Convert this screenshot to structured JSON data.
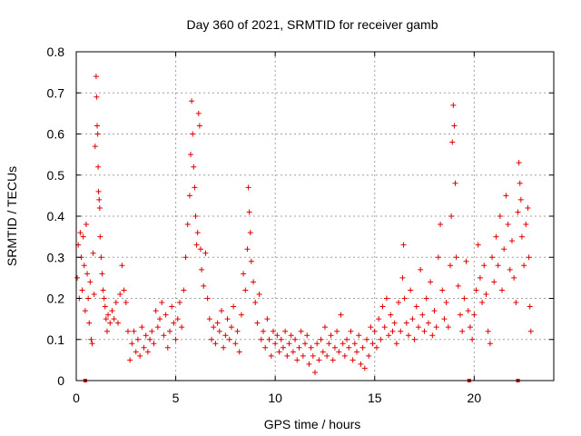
{
  "chart_data": {
    "type": "scatter",
    "title": "Day 360 of 2021, SRMTID for receiver gamb",
    "xlabel": "GPS time / hours",
    "ylabel": "SRMTID / TECUs",
    "xlim": [
      0,
      24
    ],
    "ylim": [
      0,
      0.8
    ],
    "xticks": [
      0,
      5,
      10,
      15,
      20
    ],
    "xtick_labels": [
      "0",
      "5",
      "10",
      "15",
      "20"
    ],
    "yticks": [
      0,
      0.1,
      0.2,
      0.3,
      0.4,
      0.5,
      0.6,
      0.7,
      0.8
    ],
    "ytick_labels": [
      "0",
      "0.1",
      "0.2",
      "0.3",
      "0.4",
      "0.5",
      "0.6",
      "0.7",
      "0.8"
    ],
    "grid": true,
    "marker": "+",
    "color": "#e00000",
    "series": [
      {
        "name": "SRMTID",
        "points": [
          [
            0.05,
            0.25
          ],
          [
            0.1,
            0.33
          ],
          [
            0.15,
            0.2
          ],
          [
            0.2,
            0.36
          ],
          [
            0.25,
            0.3
          ],
          [
            0.3,
            0.22
          ],
          [
            0.35,
            0.35
          ],
          [
            0.4,
            0.28
          ],
          [
            0.45,
            0.17
          ],
          [
            0.5,
            0.38
          ],
          [
            0.55,
            0.26
          ],
          [
            0.6,
            0.2
          ],
          [
            0.65,
            0.14
          ],
          [
            0.7,
            0.24
          ],
          [
            0.75,
            0.1
          ],
          [
            0.8,
            0.09
          ],
          [
            0.85,
            0.31
          ],
          [
            0.9,
            0.21
          ],
          [
            0.95,
            0.57
          ],
          [
            1.0,
            0.74
          ],
          [
            1.02,
            0.69
          ],
          [
            1.05,
            0.62
          ],
          [
            1.08,
            0.6
          ],
          [
            1.1,
            0.52
          ],
          [
            1.12,
            0.46
          ],
          [
            1.15,
            0.44
          ],
          [
            1.18,
            0.42
          ],
          [
            1.2,
            0.35
          ],
          [
            1.25,
            0.3
          ],
          [
            1.3,
            0.26
          ],
          [
            1.35,
            0.22
          ],
          [
            1.4,
            0.2
          ],
          [
            1.45,
            0.18
          ],
          [
            1.5,
            0.15
          ],
          [
            1.55,
            0.12
          ],
          [
            1.6,
            0.16
          ],
          [
            1.7,
            0.14
          ],
          [
            1.8,
            0.17
          ],
          [
            1.9,
            0.15
          ],
          [
            2.0,
            0.19
          ],
          [
            2.1,
            0.14
          ],
          [
            2.2,
            0.21
          ],
          [
            2.3,
            0.28
          ],
          [
            2.4,
            0.22
          ],
          [
            2.5,
            0.19
          ],
          [
            2.6,
            0.12
          ],
          [
            2.7,
            0.05
          ],
          [
            2.8,
            0.09
          ],
          [
            2.9,
            0.12
          ],
          [
            3.0,
            0.07
          ],
          [
            3.1,
            0.1
          ],
          [
            3.2,
            0.06
          ],
          [
            3.3,
            0.13
          ],
          [
            3.4,
            0.08
          ],
          [
            3.5,
            0.11
          ],
          [
            3.6,
            0.07
          ],
          [
            3.7,
            0.1
          ],
          [
            3.8,
            0.12
          ],
          [
            3.9,
            0.09
          ],
          [
            4.0,
            0.17
          ],
          [
            4.1,
            0.13
          ],
          [
            4.2,
            0.15
          ],
          [
            4.3,
            0.19
          ],
          [
            4.4,
            0.11
          ],
          [
            4.5,
            0.16
          ],
          [
            4.6,
            0.08
          ],
          [
            4.7,
            0.12
          ],
          [
            4.8,
            0.18
          ],
          [
            4.9,
            0.14
          ],
          [
            5.0,
            0.1
          ],
          [
            5.1,
            0.15
          ],
          [
            5.2,
            0.19
          ],
          [
            5.3,
            0.13
          ],
          [
            5.4,
            0.22
          ],
          [
            5.5,
            0.3
          ],
          [
            5.6,
            0.38
          ],
          [
            5.7,
            0.45
          ],
          [
            5.75,
            0.55
          ],
          [
            5.8,
            0.68
          ],
          [
            5.85,
            0.6
          ],
          [
            5.9,
            0.52
          ],
          [
            5.95,
            0.47
          ],
          [
            6.0,
            0.4
          ],
          [
            6.05,
            0.33
          ],
          [
            6.1,
            0.36
          ],
          [
            6.15,
            0.65
          ],
          [
            6.2,
            0.62
          ],
          [
            6.25,
            0.32
          ],
          [
            6.3,
            0.27
          ],
          [
            6.4,
            0.23
          ],
          [
            6.5,
            0.31
          ],
          [
            6.6,
            0.2
          ],
          [
            6.7,
            0.15
          ],
          [
            6.8,
            0.1
          ],
          [
            6.9,
            0.13
          ],
          [
            7.0,
            0.09
          ],
          [
            7.1,
            0.14
          ],
          [
            7.2,
            0.12
          ],
          [
            7.3,
            0.17
          ],
          [
            7.4,
            0.08
          ],
          [
            7.5,
            0.11
          ],
          [
            7.6,
            0.15
          ],
          [
            7.7,
            0.1
          ],
          [
            7.8,
            0.13
          ],
          [
            7.9,
            0.18
          ],
          [
            8.0,
            0.09
          ],
          [
            8.1,
            0.12
          ],
          [
            8.2,
            0.07
          ],
          [
            8.3,
            0.16
          ],
          [
            8.4,
            0.26
          ],
          [
            8.5,
            0.22
          ],
          [
            8.6,
            0.32
          ],
          [
            8.65,
            0.47
          ],
          [
            8.7,
            0.41
          ],
          [
            8.75,
            0.36
          ],
          [
            8.8,
            0.29
          ],
          [
            8.9,
            0.24
          ],
          [
            9.0,
            0.19
          ],
          [
            9.1,
            0.14
          ],
          [
            9.2,
            0.21
          ],
          [
            9.3,
            0.1
          ],
          [
            9.4,
            0.12
          ],
          [
            9.5,
            0.08
          ],
          [
            9.6,
            0.15
          ],
          [
            9.7,
            0.1
          ],
          [
            9.8,
            0.06
          ],
          [
            9.9,
            0.12
          ],
          [
            10.0,
            0.09
          ],
          [
            10.1,
            0.11
          ],
          [
            10.2,
            0.07
          ],
          [
            10.3,
            0.1
          ],
          [
            10.4,
            0.08
          ],
          [
            10.5,
            0.12
          ],
          [
            10.6,
            0.06
          ],
          [
            10.7,
            0.09
          ],
          [
            10.8,
            0.11
          ],
          [
            10.9,
            0.07
          ],
          [
            11.0,
            0.1
          ],
          [
            11.1,
            0.05
          ],
          [
            11.2,
            0.08
          ],
          [
            11.3,
            0.12
          ],
          [
            11.4,
            0.06
          ],
          [
            11.5,
            0.09
          ],
          [
            11.6,
            0.11
          ],
          [
            11.7,
            0.04
          ],
          [
            11.8,
            0.08
          ],
          [
            11.9,
            0.06
          ],
          [
            12.0,
            0.02
          ],
          [
            12.1,
            0.09
          ],
          [
            12.2,
            0.05
          ],
          [
            12.3,
            0.1
          ],
          [
            12.4,
            0.07
          ],
          [
            12.5,
            0.13
          ],
          [
            12.6,
            0.06
          ],
          [
            12.7,
            0.09
          ],
          [
            12.8,
            0.11
          ],
          [
            12.9,
            0.05
          ],
          [
            13.0,
            0.08
          ],
          [
            13.1,
            0.12
          ],
          [
            13.2,
            0.07
          ],
          [
            13.3,
            0.16
          ],
          [
            13.4,
            0.09
          ],
          [
            13.5,
            0.06
          ],
          [
            13.6,
            0.1
          ],
          [
            13.7,
            0.08
          ],
          [
            13.8,
            0.12
          ],
          [
            13.9,
            0.05
          ],
          [
            14.0,
            0.09
          ],
          [
            14.1,
            0.07
          ],
          [
            14.2,
            0.11
          ],
          [
            14.3,
            0.04
          ],
          [
            14.4,
            0.08
          ],
          [
            14.5,
            0.03
          ],
          [
            14.6,
            0.1
          ],
          [
            14.7,
            0.06
          ],
          [
            14.8,
            0.13
          ],
          [
            14.9,
            0.09
          ],
          [
            15.0,
            0.12
          ],
          [
            15.1,
            0.08
          ],
          [
            15.2,
            0.15
          ],
          [
            15.3,
            0.1
          ],
          [
            15.4,
            0.18
          ],
          [
            15.5,
            0.13
          ],
          [
            15.6,
            0.2
          ],
          [
            15.7,
            0.11
          ],
          [
            15.8,
            0.16
          ],
          [
            15.9,
            0.12
          ],
          [
            16.0,
            0.14
          ],
          [
            16.1,
            0.09
          ],
          [
            16.2,
            0.19
          ],
          [
            16.3,
            0.12
          ],
          [
            16.4,
            0.25
          ],
          [
            16.45,
            0.33
          ],
          [
            16.5,
            0.2
          ],
          [
            16.6,
            0.14
          ],
          [
            16.7,
            0.11
          ],
          [
            16.8,
            0.22
          ],
          [
            16.9,
            0.15
          ],
          [
            17.0,
            0.1
          ],
          [
            17.1,
            0.18
          ],
          [
            17.2,
            0.13
          ],
          [
            17.3,
            0.27
          ],
          [
            17.4,
            0.16
          ],
          [
            17.5,
            0.12
          ],
          [
            17.6,
            0.2
          ],
          [
            17.7,
            0.14
          ],
          [
            17.8,
            0.24
          ],
          [
            17.9,
            0.11
          ],
          [
            18.0,
            0.17
          ],
          [
            18.1,
            0.13
          ],
          [
            18.2,
            0.3
          ],
          [
            18.3,
            0.38
          ],
          [
            18.4,
            0.22
          ],
          [
            18.5,
            0.15
          ],
          [
            18.6,
            0.19
          ],
          [
            18.7,
            0.13
          ],
          [
            18.8,
            0.28
          ],
          [
            18.85,
            0.4
          ],
          [
            18.9,
            0.58
          ],
          [
            18.95,
            0.67
          ],
          [
            19.0,
            0.62
          ],
          [
            19.05,
            0.48
          ],
          [
            19.1,
            0.3
          ],
          [
            19.2,
            0.23
          ],
          [
            19.3,
            0.16
          ],
          [
            19.4,
            0.12
          ],
          [
            19.5,
            0.2
          ],
          [
            19.6,
            0.29
          ],
          [
            19.7,
            0.17
          ],
          [
            19.8,
            0.13
          ],
          [
            19.9,
            0.1
          ],
          [
            20.0,
            0.16
          ],
          [
            20.1,
            0.22
          ],
          [
            20.2,
            0.33
          ],
          [
            20.3,
            0.25
          ],
          [
            20.4,
            0.19
          ],
          [
            20.5,
            0.28
          ],
          [
            20.6,
            0.21
          ],
          [
            20.7,
            0.12
          ],
          [
            20.8,
            0.09
          ],
          [
            20.9,
            0.3
          ],
          [
            21.0,
            0.24
          ],
          [
            21.1,
            0.35
          ],
          [
            21.2,
            0.28
          ],
          [
            21.3,
            0.4
          ],
          [
            21.4,
            0.22
          ],
          [
            21.5,
            0.32
          ],
          [
            21.6,
            0.45
          ],
          [
            21.7,
            0.38
          ],
          [
            21.8,
            0.27
          ],
          [
            21.9,
            0.34
          ],
          [
            22.0,
            0.25
          ],
          [
            22.1,
            0.19
          ],
          [
            22.2,
            0.41
          ],
          [
            22.25,
            0.53
          ],
          [
            22.3,
            0.48
          ],
          [
            22.35,
            0.44
          ],
          [
            22.4,
            0.35
          ],
          [
            22.5,
            0.28
          ],
          [
            22.6,
            0.38
          ],
          [
            22.7,
            0.42
          ],
          [
            22.75,
            0.3
          ],
          [
            22.8,
            0.18
          ],
          [
            22.85,
            0.12
          ]
        ]
      },
      {
        "name": "baseline markers",
        "points": [
          [
            0.45,
            0
          ],
          [
            19.75,
            0
          ],
          [
            22.2,
            0
          ]
        ]
      }
    ]
  }
}
